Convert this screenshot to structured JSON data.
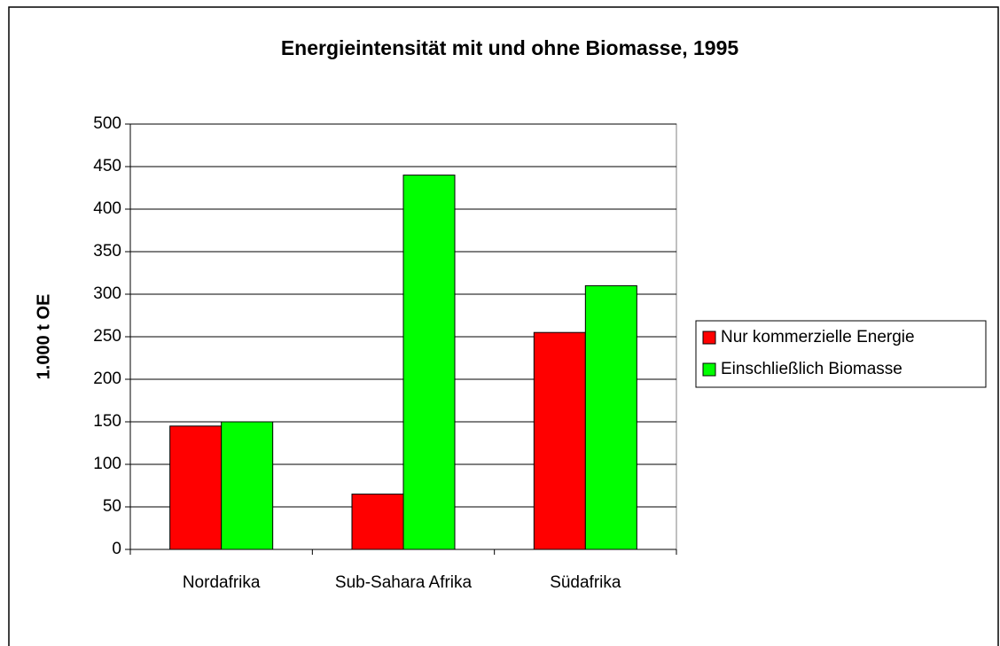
{
  "chart_data": {
    "type": "bar",
    "title": "Energieintensität mit und ohne Biomasse, 1995",
    "y_label": "1.000 t OE",
    "categories": [
      "Nordafrika",
      "Sub-Sahara Afrika",
      "Südafrika"
    ],
    "series": [
      {
        "name": "Nur kommerzielle Energie",
        "color": "#ff0000",
        "values": [
          145,
          65,
          255
        ]
      },
      {
        "name": "Einschließlich Biomasse",
        "color": "#00ff00",
        "values": [
          150,
          440,
          310
        ]
      }
    ],
    "ylim": [
      0,
      500
    ],
    "yticks": [
      0,
      50,
      100,
      150,
      200,
      250,
      300,
      350,
      400,
      450,
      500
    ],
    "grid": true,
    "legend": "right"
  }
}
